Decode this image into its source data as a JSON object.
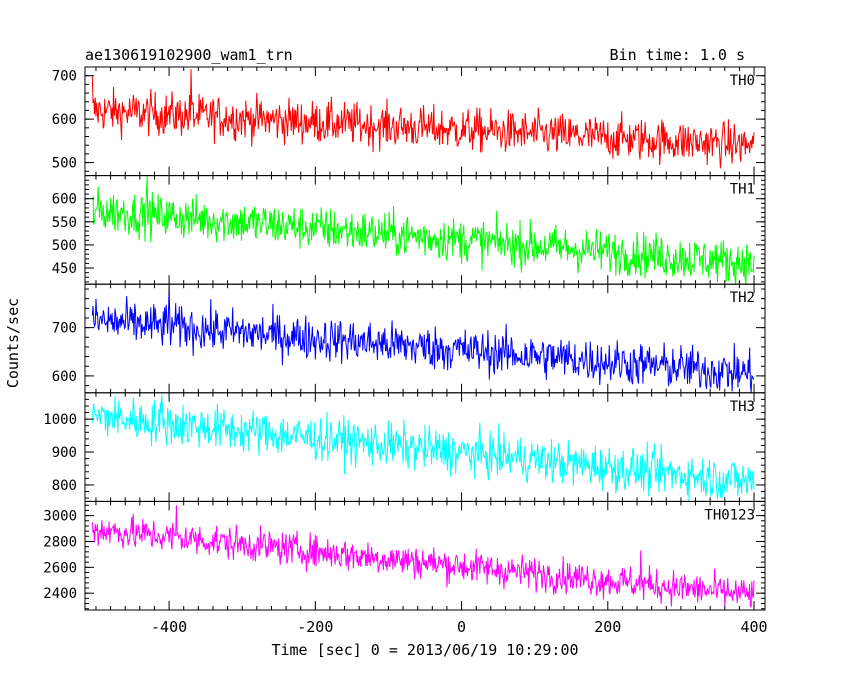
{
  "chart_data": {
    "type": "line",
    "title_left": "ae130619102900_wam1_trn",
    "title_right": "Bin time: 1.0 s",
    "xlabel": "Time [sec] 0 = 2013/06/19 10:29:00",
    "ylabel": "Counts/sec",
    "xlim": [
      -515,
      415
    ],
    "xticks": [
      -400,
      -200,
      0,
      200,
      400
    ],
    "grid": false,
    "panels": [
      {
        "name": "TH0",
        "color": "#ff0000",
        "ylim": [
          470,
          720
        ],
        "yticks": [
          500,
          600,
          700
        ],
        "start": 620,
        "end": 540,
        "noise": 25,
        "spike": [
          [
            -370,
            715
          ],
          [
            -505,
            700
          ]
        ]
      },
      {
        "name": "TH1",
        "color": "#00ff00",
        "ylim": [
          415,
          650
        ],
        "yticks": [
          450,
          500,
          550,
          600
        ],
        "start": 575,
        "end": 460,
        "noise": 24,
        "spike": [
          [
            -430,
            650
          ]
        ]
      },
      {
        "name": "TH2",
        "color": "#0000ff",
        "ylim": [
          565,
          790
        ],
        "yticks": [
          600,
          700
        ],
        "start": 715,
        "end": 605,
        "noise": 23,
        "spike": [
          [
            -400,
            785
          ]
        ]
      },
      {
        "name": "TH3",
        "color": "#00ffff",
        "ylim": [
          750,
          1080
        ],
        "yticks": [
          800,
          900,
          1000
        ],
        "start": 1010,
        "end": 810,
        "noise": 34,
        "spike": [
          [
            -410,
            1075
          ]
        ]
      },
      {
        "name": "TH0123",
        "color": "#ff00ff",
        "ylim": [
          2270,
          3110
        ],
        "yticks": [
          2400,
          2600,
          2800,
          3000
        ],
        "start": 2895,
        "end": 2385,
        "noise": 65,
        "spike": [
          [
            245,
            2730
          ],
          [
            -390,
            3080
          ]
        ]
      }
    ]
  }
}
